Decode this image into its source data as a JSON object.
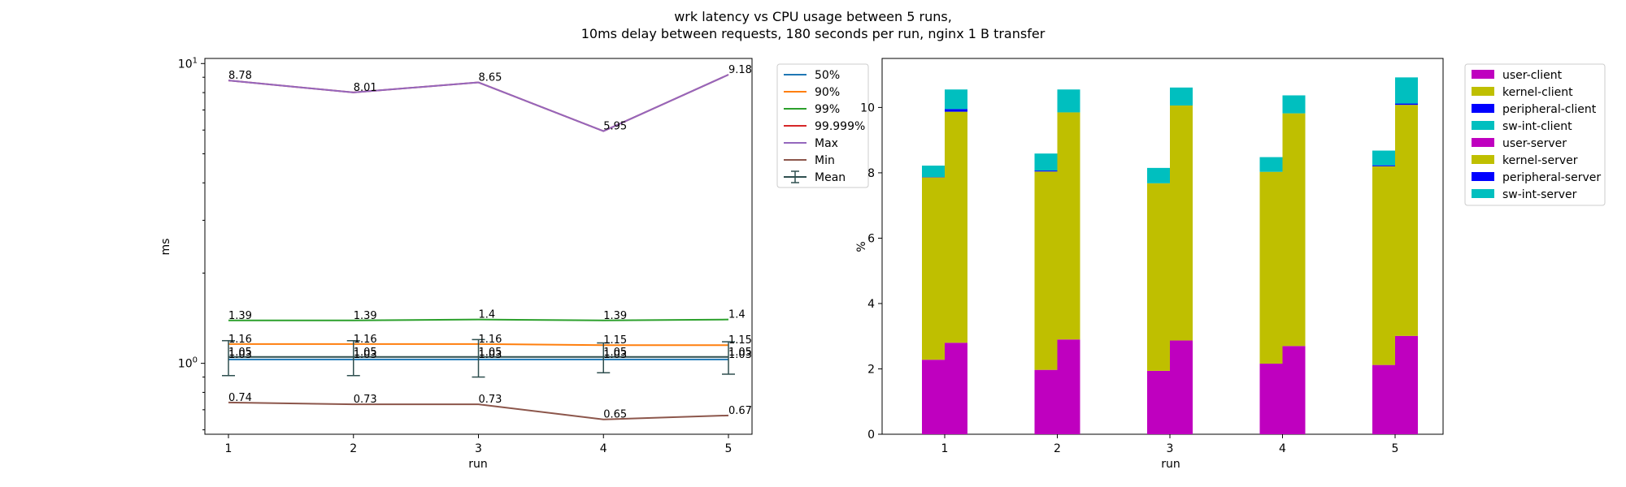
{
  "figure": {
    "title_line1": "wrk latency vs CPU usage between 5 runs,",
    "title_line2": "10ms delay between requests, 180 seconds per run, nginx 1 B transfer"
  },
  "chart_data": [
    {
      "type": "line",
      "xlabel": "run",
      "ylabel": "ms",
      "yscale": "log",
      "ylim": [
        0.58,
        10.4
      ],
      "x": [
        1,
        2,
        3,
        4,
        5
      ],
      "yticks": [
        {
          "value": 1,
          "base": "10",
          "exp": "0"
        },
        {
          "value": 10,
          "base": "10",
          "exp": "1"
        }
      ],
      "grid": false,
      "legend_position": "outside top-right",
      "series": [
        {
          "name": "50%",
          "color": "#1f77b4",
          "values": [
            1.03,
            1.03,
            1.03,
            1.03,
            1.03
          ],
          "labels": [
            "1.03",
            "1.03",
            "1.03",
            "1.03",
            "1.03"
          ]
        },
        {
          "name": "90%",
          "color": "#ff7f0e",
          "values": [
            1.16,
            1.16,
            1.16,
            1.15,
            1.15
          ],
          "labels": [
            "1.16",
            "1.16",
            "1.16",
            "1.15",
            "1.15"
          ]
        },
        {
          "name": "99%",
          "color": "#2ca02c",
          "values": [
            1.39,
            1.39,
            1.4,
            1.39,
            1.4
          ],
          "labels": [
            "1.39",
            "1.39",
            "1.4",
            "1.39",
            "1.4"
          ]
        },
        {
          "name": "99.999%",
          "color": "#d62728",
          "values": [
            8.78,
            8.01,
            8.65,
            5.95,
            9.18
          ],
          "labels": []
        },
        {
          "name": "Max",
          "color": "#9467bd",
          "values": [
            8.78,
            8.01,
            8.65,
            5.95,
            9.18
          ],
          "labels": [
            "8.78",
            "8.01",
            "8.65",
            "5.95",
            "9.18"
          ]
        },
        {
          "name": "Min",
          "color": "#8c564b",
          "values": [
            0.74,
            0.73,
            0.73,
            0.65,
            0.67
          ],
          "labels": [
            "0.74",
            "0.73",
            "0.73",
            "0.65",
            "0.67"
          ]
        }
      ],
      "mean": {
        "name": "Mean",
        "color": "#2f4f4f",
        "values": [
          1.05,
          1.05,
          1.05,
          1.05,
          1.05
        ],
        "labels": [
          "1.05",
          "1.05",
          "1.05",
          "1.05",
          "1.05"
        ],
        "err_low": [
          0.91,
          0.91,
          0.9,
          0.93,
          0.92
        ],
        "err_high": [
          1.19,
          1.19,
          1.2,
          1.17,
          1.18
        ]
      }
    },
    {
      "type": "bar",
      "stacked": true,
      "grouped": true,
      "xlabel": "run",
      "ylabel": "%",
      "ylim": [
        0,
        11.5
      ],
      "yticks": [
        0,
        2,
        4,
        6,
        8,
        10
      ],
      "categories": [
        "1",
        "2",
        "3",
        "4",
        "5"
      ],
      "grid": false,
      "legend_position": "outside top-right",
      "series": [
        {
          "name": "user-client",
          "color": "#bf00bf",
          "group": "client",
          "values": [
            2.28,
            1.97,
            1.94,
            2.16,
            2.12
          ]
        },
        {
          "name": "kernel-client",
          "color": "#bfbf00",
          "group": "client",
          "values": [
            5.58,
            6.07,
            5.74,
            5.87,
            6.08
          ]
        },
        {
          "name": "peripheral-client",
          "color": "#0000ff",
          "group": "client",
          "values": [
            0.01,
            0.03,
            0.0,
            0.0,
            0.03
          ]
        },
        {
          "name": "sw-int-client",
          "color": "#00bfbf",
          "group": "client",
          "values": [
            0.35,
            0.52,
            0.47,
            0.45,
            0.45
          ]
        },
        {
          "name": "user-server",
          "color": "#bf00bf",
          "group": "server",
          "values": [
            2.8,
            2.9,
            2.87,
            2.7,
            3.01
          ]
        },
        {
          "name": "kernel-server",
          "color": "#bfbf00",
          "group": "server",
          "values": [
            7.07,
            6.95,
            7.19,
            7.12,
            7.07
          ]
        },
        {
          "name": "peripheral-server",
          "color": "#0000ff",
          "group": "server",
          "values": [
            0.08,
            0.0,
            0.0,
            0.0,
            0.04
          ]
        },
        {
          "name": "sw-int-server",
          "color": "#00bfbf",
          "group": "server",
          "values": [
            0.6,
            0.7,
            0.55,
            0.55,
            0.8
          ]
        }
      ]
    }
  ]
}
